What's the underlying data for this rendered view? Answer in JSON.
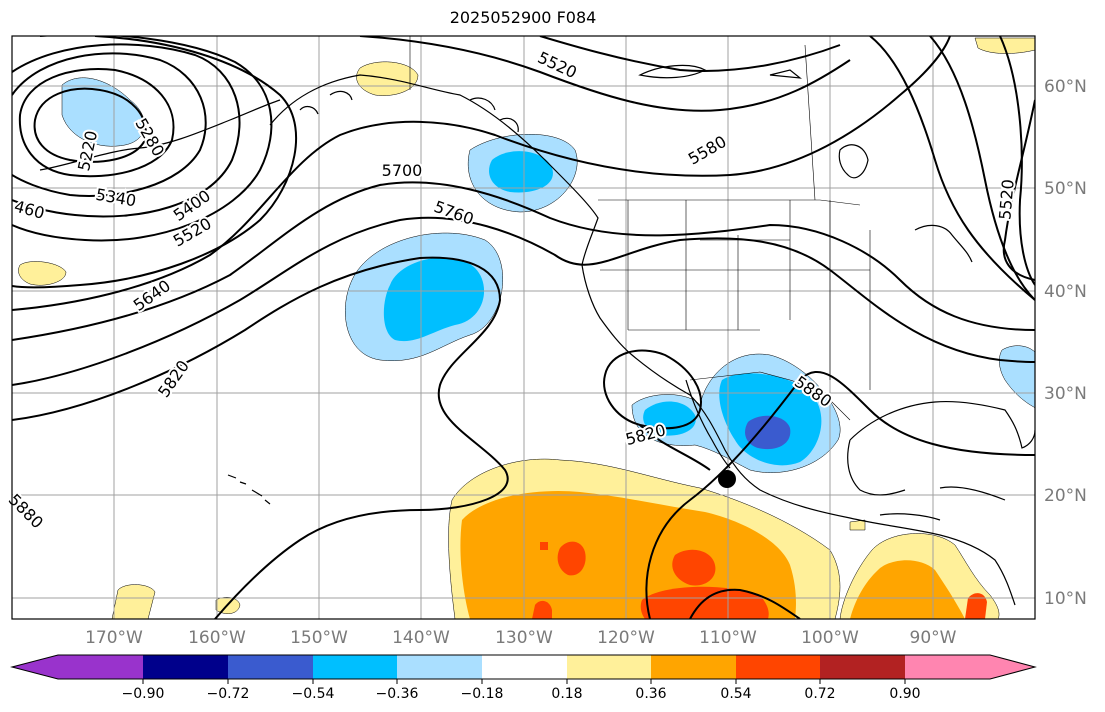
{
  "title": "2025052900 F084",
  "map": {
    "lon_labels": [
      "170°W",
      "160°W",
      "150°W",
      "140°W",
      "130°W",
      "120°W",
      "110°W",
      "100°W",
      "90°W"
    ],
    "lat_labels": [
      "60°N",
      "50°N",
      "40°N",
      "30°N",
      "20°N",
      "10°N"
    ],
    "contour_labels": [
      "5220",
      "5280",
      "5340",
      "5400",
      "5520",
      "5640",
      "5700",
      "5760",
      "5820",
      "5520",
      "5580",
      "5520",
      "5880",
      "5820",
      "5880",
      "460"
    ],
    "colors": {
      "neg_090": "#9933cc",
      "neg_072": "#00008b",
      "neg_054": "#3a5bcf",
      "neg_036": "#00bfff",
      "neg_018": "#aadfff",
      "pos_018": "#fff09a",
      "pos_036": "#ffa500",
      "pos_054": "#ff4500",
      "pos_072": "#b22222",
      "pos_090": "#ff85b0",
      "grid": "#a0a0a0",
      "axis_text": "#7a7a7a",
      "coast": "#000000"
    }
  },
  "colorbar": {
    "ticks": [
      "−0.90",
      "−0.72",
      "−0.54",
      "−0.36",
      "−0.18",
      "0.18",
      "0.36",
      "0.54",
      "0.72",
      "0.90"
    ]
  }
}
